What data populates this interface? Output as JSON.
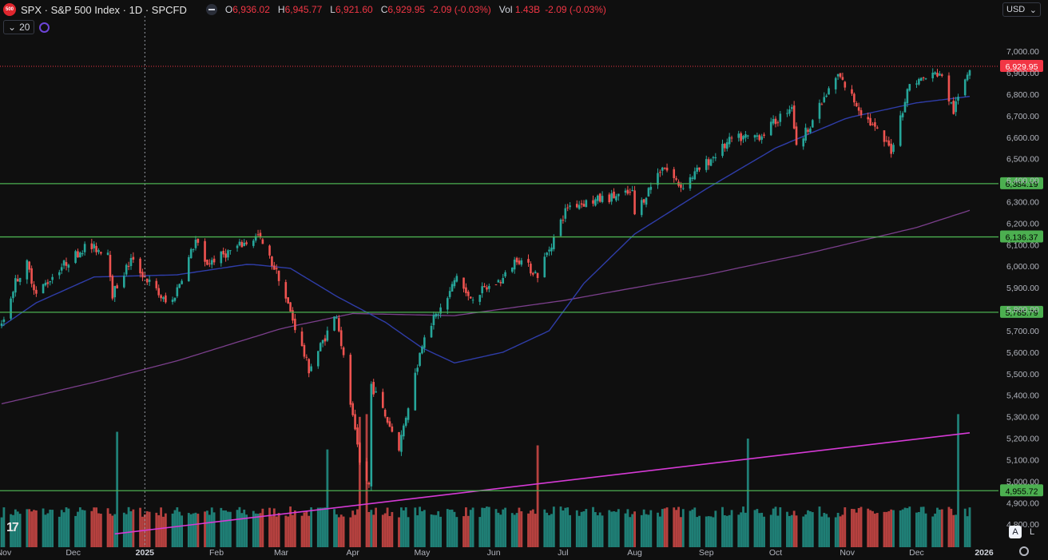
{
  "header": {
    "symbol_title": "SPX · S&P 500 Index · 1D · SPCFD",
    "logo_text": "500",
    "open_key": "O",
    "open": "6,936.02",
    "high_key": "H",
    "high": "6,945.77",
    "low_key": "L",
    "low": "6,921.60",
    "close_key": "C",
    "close": "6,929.95",
    "change": "-2.09 (-0.03%)",
    "vol_key": "Vol",
    "vol": "1.43B",
    "vol_change": "-2.09 (-0.03%)"
  },
  "indicator": {
    "label": "20"
  },
  "currency": "USD",
  "buttons": {
    "auto": "A",
    "log": "L"
  },
  "colors": {
    "up": "#26a69a",
    "down": "#ef5350",
    "ma50": "#2f3da8",
    "ma200": "#7b3f8c",
    "trend": "#d63ad6",
    "level": "#4caf50",
    "price_tag": "#f23645",
    "level_tag": "#4caf50"
  },
  "chart_data": {
    "type": "candlestick",
    "title": "SPX · S&P 500 Index · 1D · SPCFD",
    "y_ticks": [
      4800,
      4900,
      5000,
      5100,
      5200,
      5300,
      5400,
      5500,
      5600,
      5700,
      5800,
      5900,
      6000,
      6100,
      6200,
      6300,
      6400,
      6500,
      6600,
      6700,
      6800,
      6900,
      7000
    ],
    "y_tick_labels": [
      "4,800.00",
      "4,900.00",
      "5,000.00",
      "5,100.00",
      "5,200.00",
      "5,300.00",
      "5,400.00",
      "5,500.00",
      "5,600.00",
      "5,700.00",
      "5,800.00",
      "5,900.00",
      "6,000.00",
      "6,100.00",
      "6,200.00",
      "6,300.00",
      "6,400.00",
      "6,500.00",
      "6,600.00",
      "6,700.00",
      "6,800.00",
      "6,900.00",
      "7,000.00"
    ],
    "ylim": [
      4730,
      7060
    ],
    "x_labels": [
      {
        "label": "Nov",
        "date": "2024-11-01"
      },
      {
        "label": "Dec",
        "date": "2024-12-01"
      },
      {
        "label": "2025",
        "date": "2025-01-01"
      },
      {
        "label": "Feb",
        "date": "2025-02-01"
      },
      {
        "label": "Mar",
        "date": "2025-03-01"
      },
      {
        "label": "Apr",
        "date": "2025-04-01"
      },
      {
        "label": "May",
        "date": "2025-05-01"
      },
      {
        "label": "Jun",
        "date": "2025-06-01"
      },
      {
        "label": "Jul",
        "date": "2025-07-01"
      },
      {
        "label": "Aug",
        "date": "2025-08-01"
      },
      {
        "label": "Sep",
        "date": "2025-09-01"
      },
      {
        "label": "Oct",
        "date": "2025-10-01"
      },
      {
        "label": "Nov",
        "date": "2025-11-01"
      },
      {
        "label": "Dec",
        "date": "2025-12-01"
      },
      {
        "label": "2026",
        "date": "2026-01-01"
      }
    ],
    "levels": [
      {
        "value": 6384.19,
        "label": "6,384.19"
      },
      {
        "value": 6136.37,
        "label": "6,136.37"
      },
      {
        "value": 5785.79,
        "label": "5,785.79"
      },
      {
        "value": 4955.72,
        "label": "4,955.72"
      }
    ],
    "last_price": {
      "value": 6929.95,
      "label": "6,929.95"
    },
    "path": [
      [
        "2024-10-31",
        5720
      ],
      [
        "2024-11-06",
        5930
      ],
      [
        "2024-11-11",
        6010
      ],
      [
        "2024-11-15",
        5870
      ],
      [
        "2024-11-25",
        5990
      ],
      [
        "2024-12-06",
        6090
      ],
      [
        "2024-12-16",
        6070
      ],
      [
        "2024-12-18",
        5870
      ],
      [
        "2024-12-26",
        6030
      ],
      [
        "2025-01-10",
        5830
      ],
      [
        "2025-01-13",
        5840
      ],
      [
        "2025-01-23",
        6120
      ],
      [
        "2025-01-27",
        6010
      ],
      [
        "2025-02-05",
        6060
      ],
      [
        "2025-02-19",
        6140
      ],
      [
        "2025-02-28",
        5950
      ],
      [
        "2025-03-13",
        5520
      ],
      [
        "2025-03-25",
        5780
      ],
      [
        "2025-04-04",
        5080
      ],
      [
        "2025-04-08",
        4980
      ],
      [
        "2025-04-09",
        5450
      ],
      [
        "2025-04-21",
        5160
      ],
      [
        "2025-05-02",
        5690
      ],
      [
        "2025-05-12",
        5850
      ],
      [
        "2025-05-16",
        5960
      ],
      [
        "2025-05-21",
        5850
      ],
      [
        "2025-06-05",
        5940
      ],
      [
        "2025-06-11",
        6040
      ],
      [
        "2025-06-20",
        5960
      ],
      [
        "2025-07-03",
        6280
      ],
      [
        "2025-07-31",
        6340
      ],
      [
        "2025-08-01",
        6240
      ],
      [
        "2025-08-13",
        6470
      ],
      [
        "2025-08-21",
        6370
      ],
      [
        "2025-09-12",
        6590
      ],
      [
        "2025-09-25",
        6610
      ],
      [
        "2025-10-08",
        6750
      ],
      [
        "2025-10-10",
        6550
      ],
      [
        "2025-10-28",
        6890
      ],
      [
        "2025-11-07",
        6720
      ],
      [
        "2025-11-20",
        6540
      ],
      [
        "2025-11-28",
        6850
      ],
      [
        "2025-12-11",
        6900
      ],
      [
        "2025-12-17",
        6720
      ],
      [
        "2025-12-24",
        6930
      ]
    ],
    "ma50_path": [
      [
        "2024-10-31",
        5720
      ],
      [
        "2024-11-15",
        5830
      ],
      [
        "2024-12-10",
        5950
      ],
      [
        "2025-01-15",
        5960
      ],
      [
        "2025-02-15",
        6010
      ],
      [
        "2025-03-05",
        5990
      ],
      [
        "2025-03-25",
        5860
      ],
      [
        "2025-04-15",
        5740
      ],
      [
        "2025-05-01",
        5620
      ],
      [
        "2025-05-15",
        5550
      ],
      [
        "2025-06-05",
        5600
      ],
      [
        "2025-06-25",
        5700
      ],
      [
        "2025-07-10",
        5920
      ],
      [
        "2025-08-01",
        6150
      ],
      [
        "2025-09-01",
        6360
      ],
      [
        "2025-10-01",
        6550
      ],
      [
        "2025-11-01",
        6690
      ],
      [
        "2025-12-01",
        6760
      ],
      [
        "2025-12-24",
        6790
      ]
    ],
    "ma200_path": [
      [
        "2024-10-31",
        5360
      ],
      [
        "2024-12-10",
        5460
      ],
      [
        "2025-01-15",
        5560
      ],
      [
        "2025-03-01",
        5710
      ],
      [
        "2025-04-01",
        5780
      ],
      [
        "2025-05-15",
        5770
      ],
      [
        "2025-07-01",
        5840
      ],
      [
        "2025-09-01",
        5960
      ],
      [
        "2025-10-15",
        6060
      ],
      [
        "2025-12-01",
        6180
      ],
      [
        "2025-12-24",
        6260
      ]
    ],
    "trendline": {
      "from": [
        "2024-12-19",
        4755
      ],
      "to": [
        "2025-12-24",
        5225
      ]
    },
    "cursor_date": "2025-01-01",
    "volume": {
      "note": "1.43B last bar",
      "levels": [
        0.35,
        0.7
      ],
      "spikes": [
        [
          "2024-12-20",
          0.85
        ],
        [
          "2025-03-21",
          0.72
        ],
        [
          "2025-04-04",
          0.96
        ],
        [
          "2025-04-07",
          0.98
        ],
        [
          "2025-06-20",
          0.75
        ],
        [
          "2025-09-19",
          0.8
        ],
        [
          "2025-12-19",
          0.98
        ]
      ]
    }
  }
}
